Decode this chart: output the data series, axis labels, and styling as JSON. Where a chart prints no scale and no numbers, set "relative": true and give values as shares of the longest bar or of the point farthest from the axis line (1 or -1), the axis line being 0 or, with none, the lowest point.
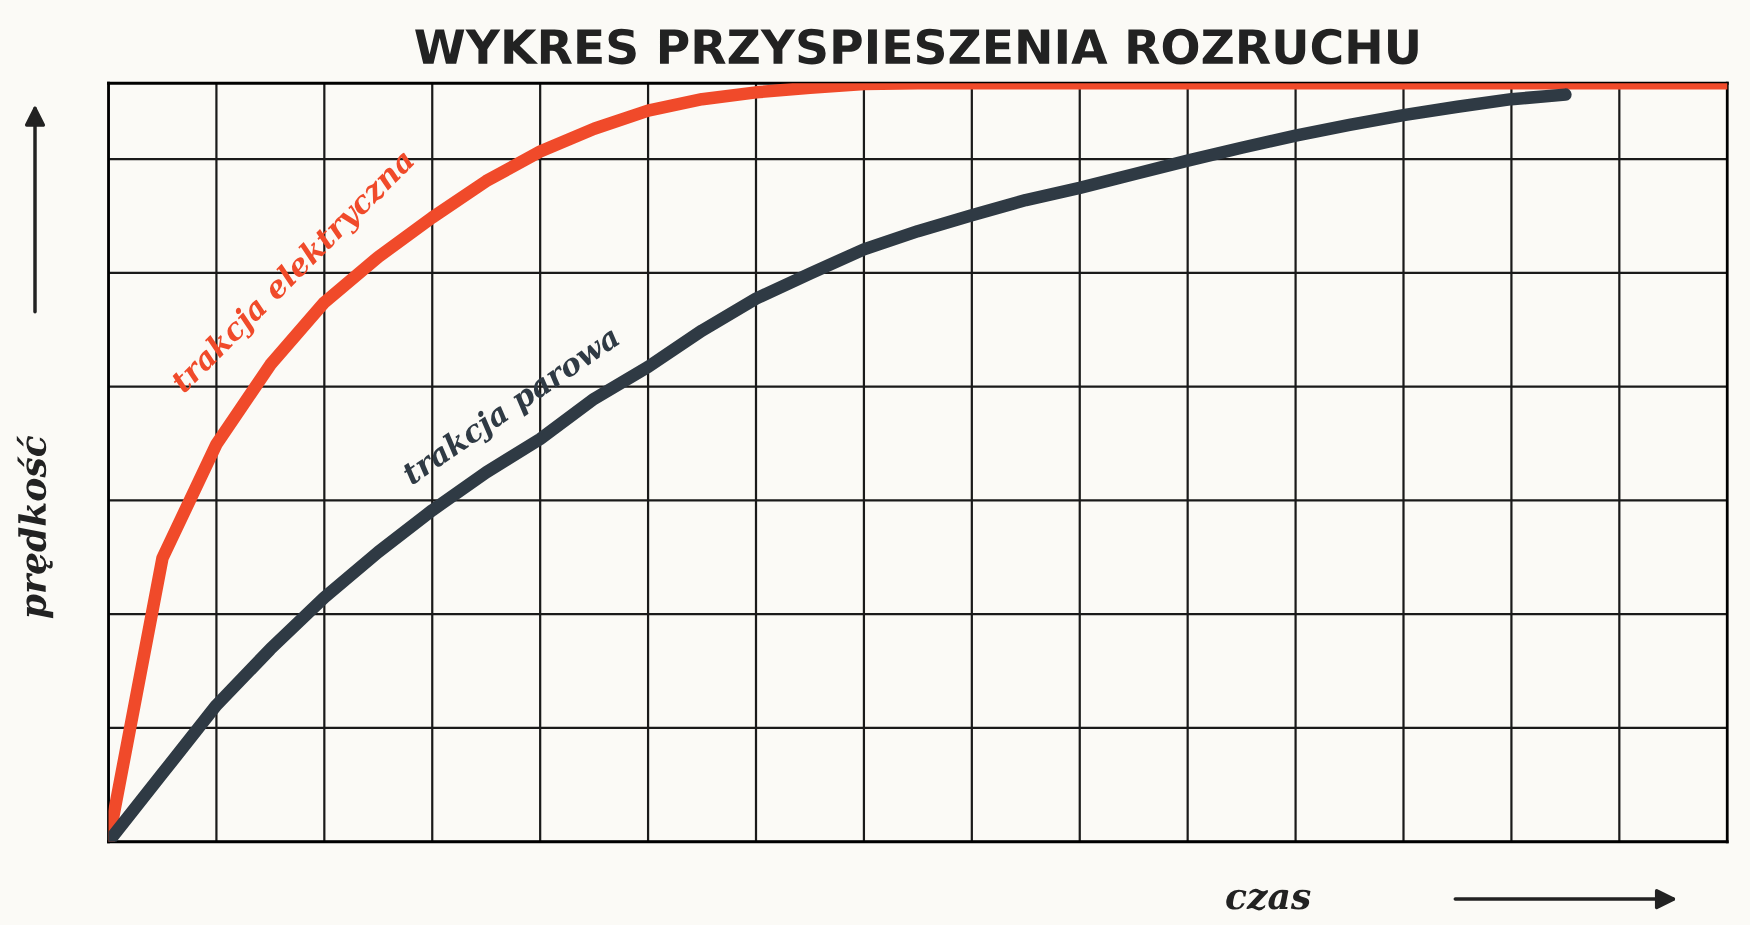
{
  "chart_data": {
    "type": "line",
    "title": "WYKRES PRZYSPIESZENIA ROZRUCHU",
    "xlabel": "czas",
    "ylabel": "prędkość",
    "relative": true,
    "grid": true,
    "legend": false,
    "marker": "none",
    "line_style": "solid",
    "categories": [
      null,
      null,
      null,
      null,
      null,
      null,
      null,
      null,
      null,
      null,
      null,
      null,
      null,
      null,
      null,
      null,
      null,
      null,
      null,
      null,
      null,
      null,
      null,
      null,
      null,
      null,
      null,
      null,
      null,
      null,
      null
    ],
    "series": [
      {
        "name": "trakcja elektryczna",
        "color": "#f04a2a",
        "values": [
          0,
          0.374,
          0.524,
          0.629,
          0.711,
          0.771,
          0.823,
          0.871,
          0.91,
          0.94,
          0.964,
          0.979,
          0.988,
          0.994,
          0.999,
          1,
          1,
          1,
          1,
          1,
          1,
          1,
          1,
          1,
          1,
          1,
          1,
          1,
          1,
          1,
          1
        ]
      },
      {
        "name": "trakcja parowa",
        "color": "#2f3a44",
        "values": [
          0,
          0.09,
          0.18,
          0.254,
          0.322,
          0.382,
          0.437,
          0.487,
          0.531,
          0.584,
          0.626,
          0.674,
          0.716,
          0.749,
          0.781,
          0.805,
          0.826,
          0.846,
          0.862,
          0.88,
          0.898,
          0.915,
          0.931,
          0.945,
          0.958,
          0.969,
          0.979,
          0.985,
          null,
          null,
          null
        ]
      }
    ]
  }
}
